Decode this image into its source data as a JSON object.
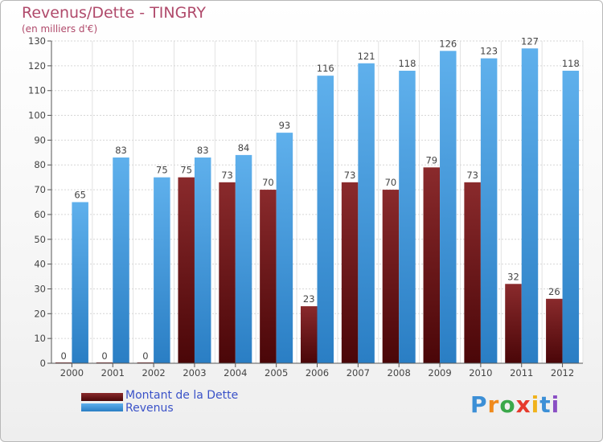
{
  "chart_data": {
    "type": "bar",
    "title": "Revenus/Dette - TINGRY",
    "subtitle": "(en milliers d'€)",
    "categories": [
      "2000",
      "2001",
      "2002",
      "2003",
      "2004",
      "2005",
      "2006",
      "2007",
      "2008",
      "2009",
      "2010",
      "2011",
      "2012"
    ],
    "series": [
      {
        "name": "Montant de la Dette",
        "color": "#6b1416",
        "values": [
          0,
          0,
          0,
          75,
          73,
          70,
          23,
          73,
          70,
          79,
          73,
          32,
          26
        ]
      },
      {
        "name": "Revenus",
        "color": "#3e98dc",
        "values": [
          65,
          83,
          75,
          83,
          84,
          93,
          116,
          121,
          118,
          126,
          123,
          127,
          118
        ]
      }
    ],
    "ylim": [
      0,
      130
    ],
    "yticks": [
      0,
      10,
      20,
      30,
      40,
      50,
      60,
      70,
      80,
      90,
      100,
      110,
      120,
      130
    ],
    "grid": true,
    "legend_position": "bottom-left"
  },
  "branding": {
    "logo_text": "Proxiti",
    "logo_colors": [
      "#3c8fd6",
      "#f08a1c",
      "#3aa84a",
      "#e63a2c",
      "#f0b21c",
      "#3c8fd6",
      "#8a4fc4"
    ]
  }
}
